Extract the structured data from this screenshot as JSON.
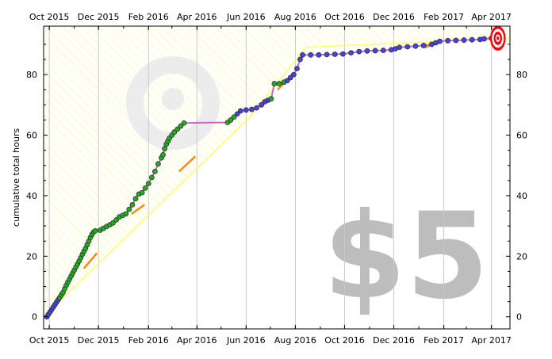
{
  "chart_data": {
    "type": "line",
    "title": "",
    "xlabel": "",
    "ylabel": "cumulative total hours",
    "x_ticks": [
      "Oct 2015",
      "Dec 2015",
      "Feb 2016",
      "Apr 2016",
      "Jun 2016",
      "Aug 2016",
      "Oct 2016",
      "Dec 2016",
      "Feb 2017",
      "Apr 2017"
    ],
    "x_range": [
      "2015-09-24",
      "2017-04-24"
    ],
    "ylim": [
      -4,
      96
    ],
    "y_ticks": [
      0,
      20,
      40,
      60,
      80
    ],
    "grid": "vertical",
    "watermark_text": "$5",
    "goal": {
      "date": "2017-04-09",
      "value": 92,
      "marker": "bullseye-icon"
    },
    "colors": {
      "progress_line": "#cc66cc",
      "point_fill_green": "#22aa22",
      "point_fill_blue": "#4444dd",
      "point_edge": "#333333",
      "road": "#ffff66",
      "road_hatch": "#ffff99",
      "guideline": "#ff8800",
      "target": "#ff0000"
    },
    "series": [
      {
        "name": "",
        "points": [
          [
            "2015-09-28",
            0
          ],
          [
            "2015-09-30",
            0.8
          ],
          [
            "2015-10-02",
            1.6
          ],
          [
            "2015-10-04",
            2.4
          ],
          [
            "2015-10-06",
            3.2
          ],
          [
            "2015-10-08",
            4.0
          ],
          [
            "2015-10-10",
            4.8
          ],
          [
            "2015-10-12",
            5.6
          ],
          [
            "2015-10-14",
            6.4
          ],
          [
            "2015-10-16",
            7.2
          ],
          [
            "2015-10-18",
            8.0
          ],
          [
            "2015-10-20",
            9.2
          ],
          [
            "2015-10-22",
            10.4
          ],
          [
            "2015-10-24",
            11.4
          ],
          [
            "2015-10-26",
            12.4
          ],
          [
            "2015-10-28",
            13.4
          ],
          [
            "2015-10-30",
            14.4
          ],
          [
            "2015-11-01",
            15.4
          ],
          [
            "2015-11-03",
            16.4
          ],
          [
            "2015-11-05",
            17.4
          ],
          [
            "2015-11-07",
            18.4
          ],
          [
            "2015-11-09",
            19.5
          ],
          [
            "2015-11-11",
            20.6
          ],
          [
            "2015-11-13",
            21.6
          ],
          [
            "2015-11-15",
            22.6
          ],
          [
            "2015-11-17",
            23.8
          ],
          [
            "2015-11-19",
            25.0
          ],
          [
            "2015-11-21",
            26.2
          ],
          [
            "2015-11-23",
            27.2
          ],
          [
            "2015-11-25",
            28.0
          ],
          [
            "2015-11-27",
            28.4
          ],
          [
            "2015-12-03",
            28.6
          ],
          [
            "2015-12-07",
            29.2
          ],
          [
            "2015-12-11",
            29.8
          ],
          [
            "2015-12-15",
            30.4
          ],
          [
            "2015-12-19",
            31.0
          ],
          [
            "2015-12-23",
            32.0
          ],
          [
            "2015-12-27",
            33.0
          ],
          [
            "2015-12-31",
            33.5
          ],
          [
            "2016-01-04",
            34.0
          ],
          [
            "2016-01-08",
            35.5
          ],
          [
            "2016-01-12",
            37.0
          ],
          [
            "2016-01-16",
            39.0
          ],
          [
            "2016-01-20",
            40.5
          ],
          [
            "2016-01-24",
            41.0
          ],
          [
            "2016-01-28",
            42.5
          ],
          [
            "2016-02-01",
            44.0
          ],
          [
            "2016-02-05",
            46.0
          ],
          [
            "2016-02-09",
            48.0
          ],
          [
            "2016-02-13",
            50.5
          ],
          [
            "2016-02-17",
            52.5
          ],
          [
            "2016-02-19",
            53.5
          ],
          [
            "2016-02-21",
            55.5
          ],
          [
            "2016-02-23",
            57.0
          ],
          [
            "2016-02-25",
            58.0
          ],
          [
            "2016-02-27",
            59.0
          ],
          [
            "2016-03-01",
            60.0
          ],
          [
            "2016-03-04",
            61.0
          ],
          [
            "2016-03-08",
            62.0
          ],
          [
            "2016-03-12",
            63.0
          ],
          [
            "2016-03-16",
            64.0
          ],
          [
            "2016-05-09",
            64.2
          ],
          [
            "2016-05-13",
            65.0
          ],
          [
            "2016-05-17",
            66.0
          ],
          [
            "2016-05-21",
            67.0
          ],
          [
            "2016-05-25",
            68.0
          ],
          [
            "2016-06-01",
            68.3
          ],
          [
            "2016-06-08",
            68.5
          ],
          [
            "2016-06-14",
            69.0
          ],
          [
            "2016-06-20",
            70.0
          ],
          [
            "2016-06-24",
            71.0
          ],
          [
            "2016-06-28",
            71.5
          ],
          [
            "2016-07-02",
            72.0
          ],
          [
            "2016-07-06",
            77.0
          ],
          [
            "2016-07-12",
            77.0
          ],
          [
            "2016-07-18",
            77.5
          ],
          [
            "2016-07-22",
            78.0
          ],
          [
            "2016-07-26",
            79.0
          ],
          [
            "2016-07-30",
            80.0
          ],
          [
            "2016-08-03",
            82.0
          ],
          [
            "2016-08-07",
            85.0
          ],
          [
            "2016-08-10",
            86.5
          ],
          [
            "2016-08-20",
            86.5
          ],
          [
            "2016-08-30",
            86.5
          ],
          [
            "2016-09-09",
            86.6
          ],
          [
            "2016-09-19",
            86.7
          ],
          [
            "2016-09-29",
            86.8
          ],
          [
            "2016-10-09",
            87.2
          ],
          [
            "2016-10-19",
            87.6
          ],
          [
            "2016-10-29",
            87.8
          ],
          [
            "2016-11-08",
            87.9
          ],
          [
            "2016-11-18",
            88.0
          ],
          [
            "2016-11-28",
            88.2
          ],
          [
            "2016-12-03",
            88.5
          ],
          [
            "2016-12-08",
            89.0
          ],
          [
            "2016-12-18",
            89.2
          ],
          [
            "2016-12-28",
            89.4
          ],
          [
            "2017-01-07",
            89.6
          ],
          [
            "2017-01-17",
            90.0
          ],
          [
            "2017-01-22",
            90.5
          ],
          [
            "2017-01-27",
            91.0
          ],
          [
            "2017-02-06",
            91.2
          ],
          [
            "2017-02-16",
            91.3
          ],
          [
            "2017-02-26",
            91.4
          ],
          [
            "2017-03-08",
            91.5
          ],
          [
            "2017-03-18",
            91.6
          ],
          [
            "2017-03-23",
            91.8
          ],
          [
            "2017-04-01",
            92.0
          ]
        ]
      }
    ],
    "guideline_segments": [
      [
        [
          "2015-11-13",
          16
        ],
        [
          "2015-11-29",
          21
        ]
      ],
      [
        [
          "2016-01-11",
          34
        ],
        [
          "2016-01-27",
          37
        ]
      ],
      [
        [
          "2016-03-10",
          48
        ],
        [
          "2016-03-30",
          53
        ]
      ],
      [
        [
          "2016-07-10",
          75
        ],
        [
          "2016-07-28",
          80
        ]
      ],
      [
        [
          "2017-01-09",
          89
        ],
        [
          "2017-01-21",
          90.3
        ]
      ]
    ],
    "road_polyline": [
      [
        "2015-09-24",
        0
      ],
      [
        "2016-06-06",
        66
      ],
      [
        "2016-08-14",
        89
      ],
      [
        "2017-04-24",
        92
      ]
    ]
  }
}
